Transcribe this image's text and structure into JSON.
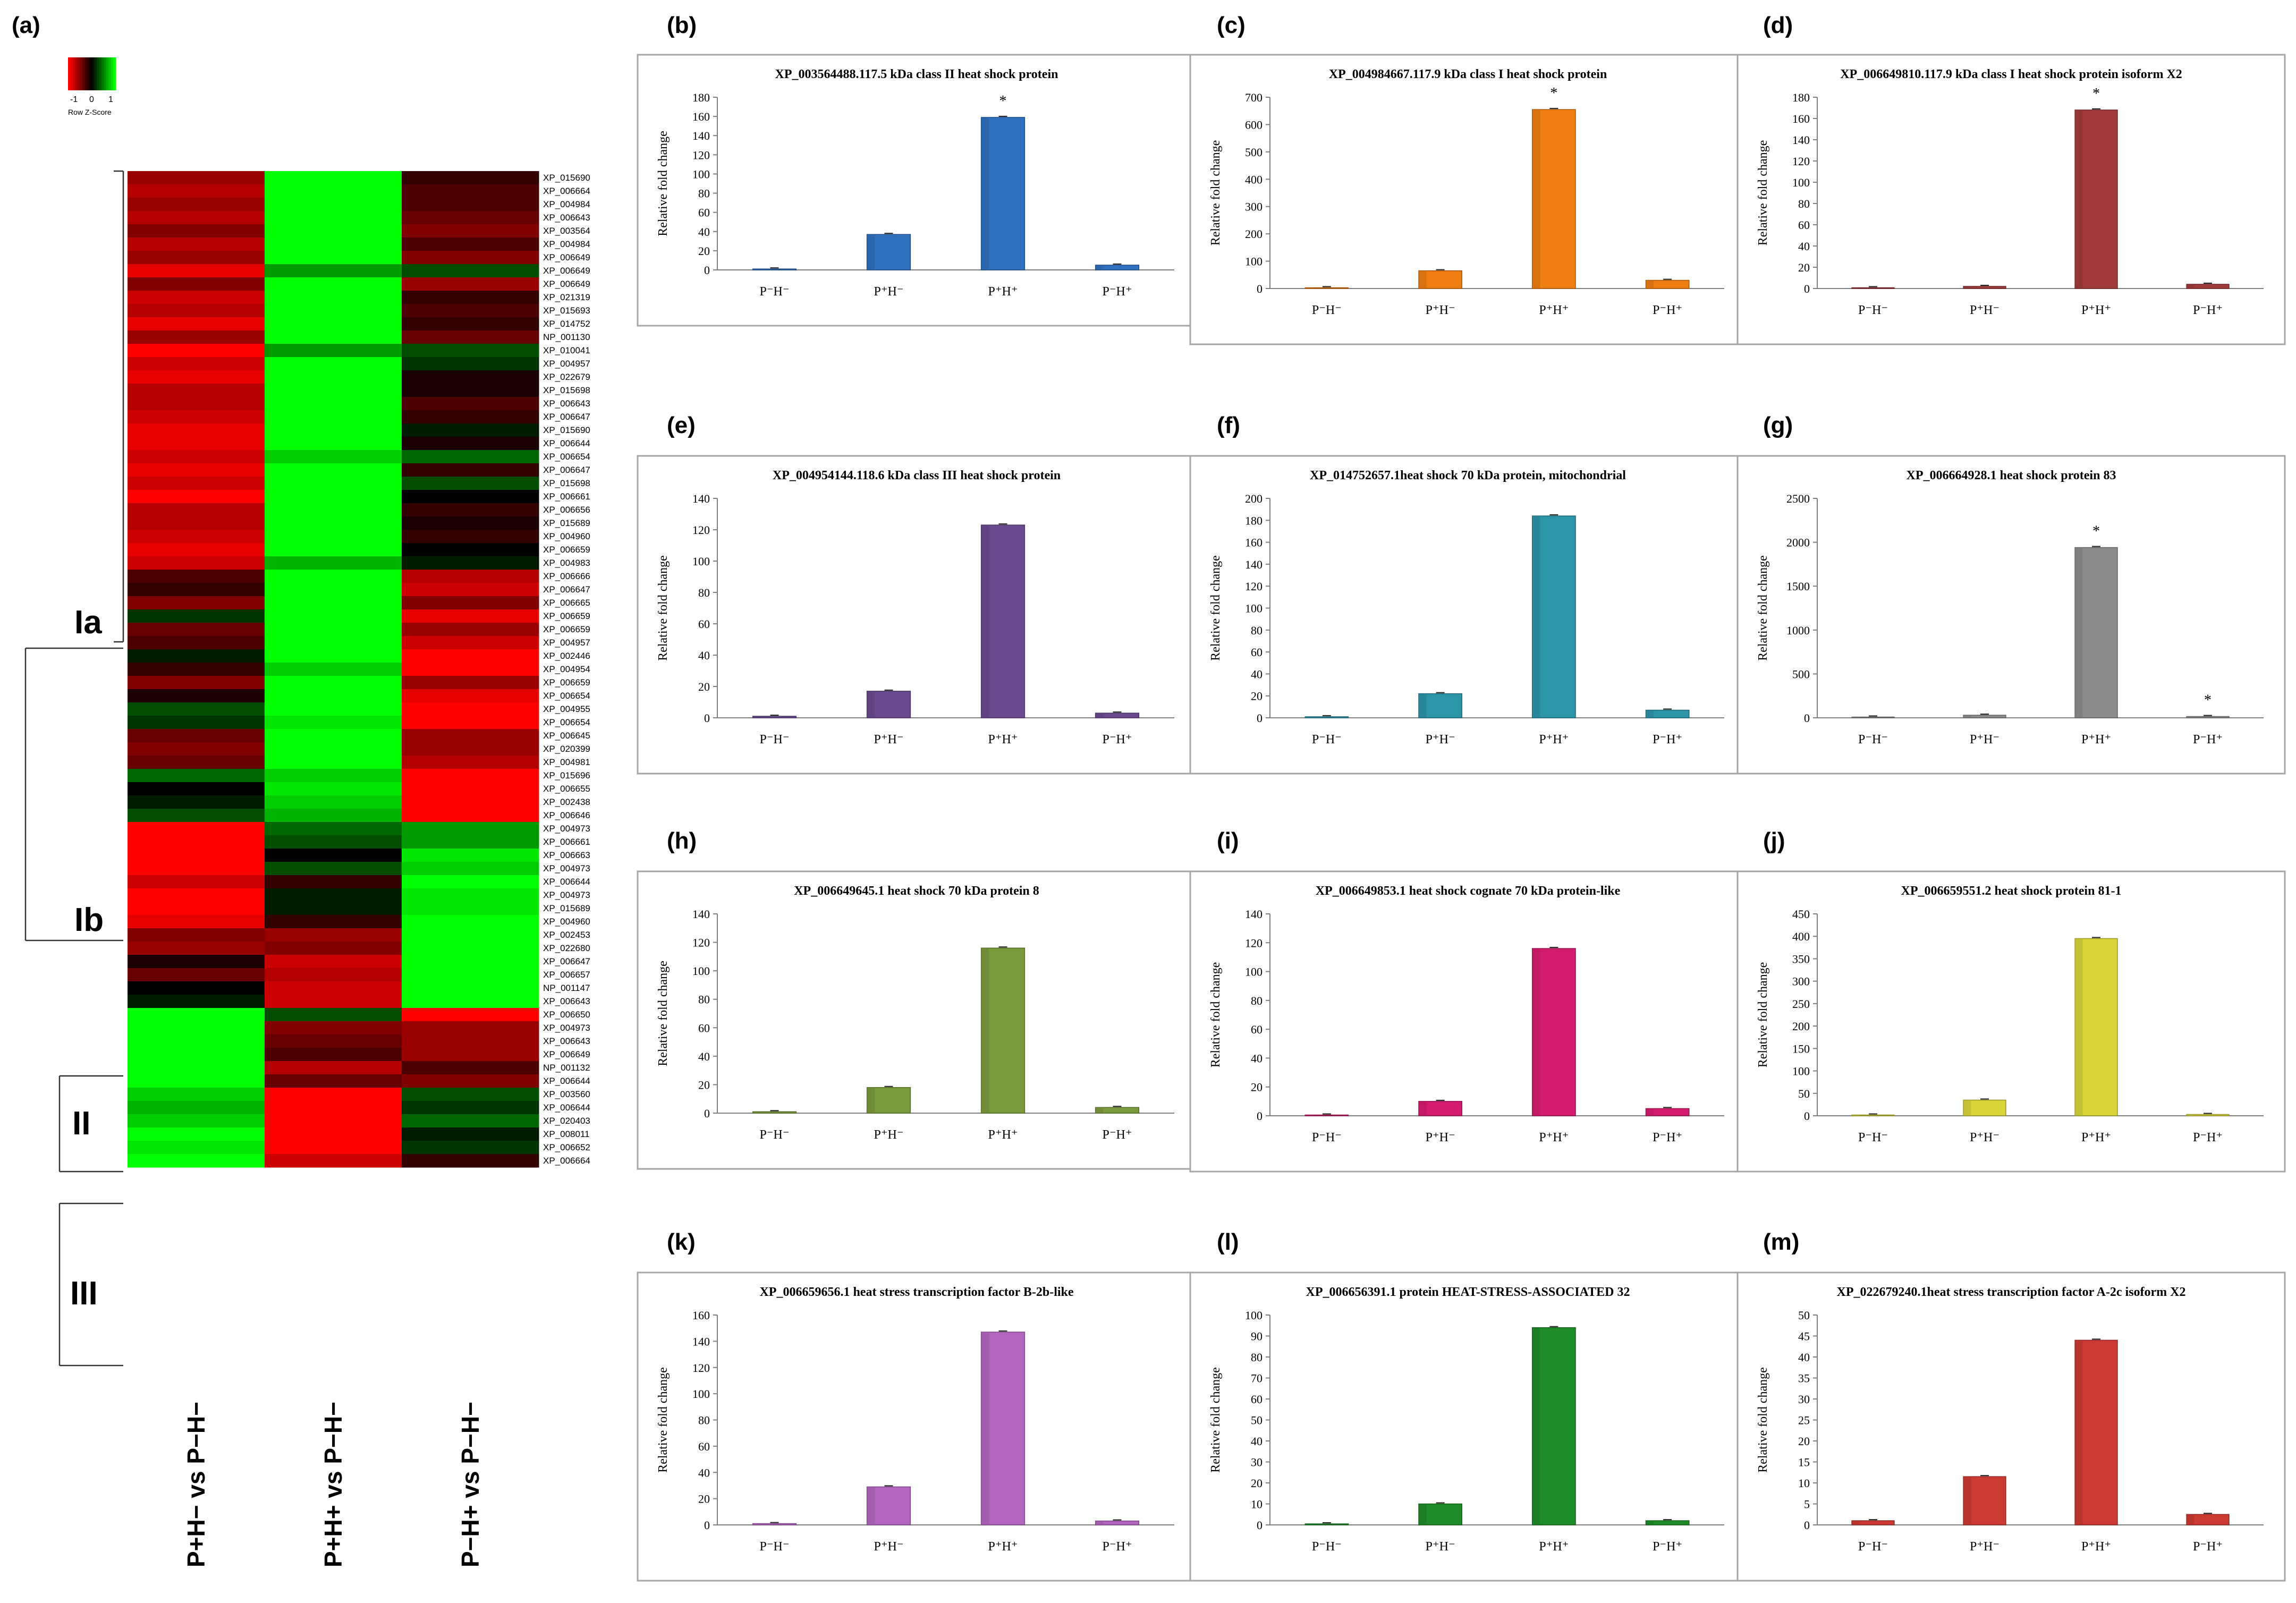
{
  "panel_letters": [
    "(a)",
    "(b)",
    "(c)",
    "(d)",
    "(e)",
    "(f)",
    "(g)",
    "(h)",
    "(i)",
    "(j)",
    "(k)",
    "(l)",
    "(m)"
  ],
  "heatmap": {
    "scale": {
      "ticks": [
        "-1",
        "0",
        "1"
      ],
      "label": "Row Z-Score"
    },
    "columns": [
      "P+H− vs P−H−",
      "P+H+ vs P−H−",
      "P−H+ vs P−H−"
    ],
    "groups": [
      "Ia",
      "Ib",
      "II",
      "III"
    ],
    "colors": {
      "low": "#ff0000",
      "mid": "#000000",
      "high": "#00ff00"
    },
    "rows": [
      "XP_015690",
      "XP_006664",
      "XP_004984",
      "XP_006643",
      "XP_003564",
      "XP_004984",
      "XP_006649",
      "XP_006649",
      "XP_006649",
      "XP_021319",
      "XP_015693",
      "XP_014752",
      "NP_001130",
      "XP_010041",
      "XP_004957",
      "XP_022679",
      "XP_015698",
      "XP_006643",
      "XP_006647",
      "XP_015690",
      "XP_006644",
      "XP_006654",
      "XP_006647",
      "XP_015698",
      "XP_006661",
      "XP_006656",
      "XP_015689",
      "XP_004960",
      "XP_006659",
      "XP_004983",
      "XP_006666",
      "XP_006647",
      "XP_006665",
      "XP_006659",
      "XP_006659",
      "XP_004957",
      "XP_002446",
      "XP_004954",
      "XP_006659",
      "XP_006654",
      "XP_004955",
      "XP_006654",
      "XP_006645",
      "XP_020399",
      "XP_004981",
      "XP_015696",
      "XP_006655",
      "XP_002438",
      "XP_006646",
      "XP_004973",
      "XP_006661",
      "XP_006663",
      "XP_004973",
      "XP_006644",
      "XP_004973",
      "XP_015689",
      "XP_004960",
      "XP_002453",
      "XP_022680",
      "XP_006647",
      "XP_006657",
      "NP_001147",
      "XP_006643",
      "XP_006650",
      "XP_004973",
      "XP_006643",
      "XP_006649",
      "NP_001132",
      "XP_006644",
      "XP_003560",
      "XP_006644",
      "XP_020403",
      "XP_008011",
      "XP_006652",
      "XP_006664"
    ],
    "values": [
      [
        -0.6,
        1,
        -0.2
      ],
      [
        -0.7,
        1,
        -0.3
      ],
      [
        -0.6,
        1,
        -0.3
      ],
      [
        -0.7,
        1,
        -0.4
      ],
      [
        -0.5,
        1,
        -0.5
      ],
      [
        -0.7,
        1,
        -0.3
      ],
      [
        -0.6,
        1,
        -0.5
      ],
      [
        -0.9,
        0.6,
        0.3
      ],
      [
        -0.5,
        1,
        -0.6
      ],
      [
        -0.8,
        1,
        -0.2
      ],
      [
        -0.7,
        1,
        -0.3
      ],
      [
        -0.9,
        1,
        -0.2
      ],
      [
        -0.6,
        1,
        -0.4
      ],
      [
        -1,
        0.6,
        0.3
      ],
      [
        -0.8,
        1,
        0.2
      ],
      [
        -0.9,
        1,
        -0.1
      ],
      [
        -0.7,
        1,
        -0.1
      ],
      [
        -0.7,
        1,
        -0.3
      ],
      [
        -0.8,
        1,
        -0.2
      ],
      [
        -0.9,
        1,
        0.1
      ],
      [
        -0.9,
        1,
        -0.1
      ],
      [
        -0.8,
        0.8,
        0.4
      ],
      [
        -0.9,
        1,
        -0.2
      ],
      [
        -0.8,
        1,
        0.3
      ],
      [
        -1,
        1,
        0
      ],
      [
        -0.7,
        1,
        -0.2
      ],
      [
        -0.7,
        1,
        -0.1
      ],
      [
        -0.8,
        1,
        -0.2
      ],
      [
        -0.9,
        1,
        0
      ],
      [
        -0.8,
        0.7,
        0.1
      ],
      [
        -0.3,
        1,
        -0.7
      ],
      [
        -0.2,
        1,
        -0.8
      ],
      [
        -0.5,
        1,
        -0.5
      ],
      [
        0.2,
        1,
        -0.9
      ],
      [
        -0.4,
        1,
        -0.6
      ],
      [
        -0.3,
        1,
        -0.8
      ],
      [
        0.1,
        1,
        -1
      ],
      [
        -0.2,
        0.8,
        -1
      ],
      [
        -0.5,
        1,
        -0.6
      ],
      [
        -0.1,
        1,
        -0.9
      ],
      [
        0.3,
        1,
        -1
      ],
      [
        0.2,
        0.9,
        -1
      ],
      [
        -0.4,
        1,
        -0.6
      ],
      [
        -0.5,
        1,
        -0.6
      ],
      [
        -0.4,
        1,
        -0.7
      ],
      [
        0.4,
        0.8,
        -1
      ],
      [
        0,
        0.9,
        -1
      ],
      [
        0.1,
        0.8,
        -1
      ],
      [
        0.3,
        0.7,
        -1
      ],
      [
        -1,
        0.4,
        0.6
      ],
      [
        -1,
        0.3,
        0.6
      ],
      [
        -1,
        0,
        0.9
      ],
      [
        -1,
        0.3,
        0.8
      ],
      [
        -0.8,
        -0.2,
        1
      ],
      [
        -1,
        0.1,
        0.9
      ],
      [
        -1,
        0.1,
        0.9
      ],
      [
        -0.9,
        -0.2,
        1
      ],
      [
        -0.5,
        -0.6,
        1
      ],
      [
        -0.6,
        -0.5,
        1
      ],
      [
        -0.1,
        -0.8,
        1
      ],
      [
        -0.4,
        -0.7,
        1
      ],
      [
        0,
        -0.8,
        1
      ],
      [
        0.1,
        -0.8,
        1
      ],
      [
        1,
        0.3,
        -1
      ],
      [
        1,
        -0.5,
        -0.6
      ],
      [
        1,
        -0.4,
        -0.6
      ],
      [
        1,
        -0.3,
        -0.6
      ],
      [
        1,
        -0.7,
        -0.3
      ],
      [
        1,
        -0.4,
        -0.5
      ],
      [
        0.8,
        -1,
        0.3
      ],
      [
        0.7,
        -1,
        0.2
      ],
      [
        0.8,
        -1,
        0.4
      ],
      [
        1,
        -1,
        0.1
      ],
      [
        0.9,
        -1,
        0.2
      ],
      [
        1,
        -0.8,
        -0.2
      ]
    ]
  },
  "chart_data": [
    {
      "panel": "(b)",
      "type": "bar",
      "title": "XP_003564488.117.5 kDa class II heat shock protein",
      "ylabel": "Relative fold change",
      "categories": [
        "P⁻H⁻",
        "P⁺H⁻",
        "P⁺H⁺",
        "P⁻H⁺"
      ],
      "values": [
        1,
        37,
        159,
        5
      ],
      "ylim": [
        0,
        180
      ],
      "ticks": [
        0,
        20,
        40,
        60,
        80,
        100,
        120,
        140,
        160,
        180
      ],
      "color": "#2f70bf",
      "sig": [
        "",
        "",
        "*",
        ""
      ]
    },
    {
      "panel": "(c)",
      "type": "bar",
      "title": "XP_004984667.117.9 kDa class I heat shock protein",
      "ylabel": "Relative fold change",
      "categories": [
        "P⁻H⁻",
        "P⁺H⁻",
        "P⁺H⁺",
        "P⁻H⁺"
      ],
      "values": [
        1,
        65,
        655,
        30
      ],
      "ylim": [
        0,
        700
      ],
      "ticks": [
        0,
        100,
        200,
        300,
        400,
        500,
        600,
        700
      ],
      "color": "#ee7d12",
      "sig": [
        "",
        "",
        "*",
        ""
      ]
    },
    {
      "panel": "(d)",
      "type": "bar",
      "title": "XP_006649810.117.9 kDa class I heat shock protein isoform X2",
      "ylabel": "Relative fold change",
      "categories": [
        "P⁻H⁻",
        "P⁺H⁻",
        "P⁺H⁺",
        "P⁻H⁺"
      ],
      "values": [
        0.5,
        2,
        168,
        4
      ],
      "ylim": [
        0,
        180
      ],
      "ticks": [
        0,
        20,
        40,
        60,
        80,
        100,
        120,
        140,
        160,
        180
      ],
      "color": "#a13b3b",
      "sig": [
        "",
        "",
        "*",
        ""
      ]
    },
    {
      "panel": "(e)",
      "type": "bar",
      "title": "XP_004954144.118.6 kDa class III heat shock protein",
      "ylabel": "Relative fold change",
      "categories": [
        "P⁻H⁻",
        "P⁺H⁻",
        "P⁺H⁺",
        "P⁻H⁺"
      ],
      "values": [
        1,
        17,
        123,
        3
      ],
      "ylim": [
        0,
        140
      ],
      "ticks": [
        0,
        20,
        40,
        60,
        80,
        100,
        120,
        140
      ],
      "color": "#6a4a8e",
      "sig": [
        "",
        "",
        "",
        ""
      ]
    },
    {
      "panel": "(f)",
      "type": "bar",
      "title": "XP_014752657.1heat shock 70 kDa protein, mitochondrial",
      "ylabel": "Relative fold change",
      "categories": [
        "P⁻H⁻",
        "P⁺H⁻",
        "P⁺H⁺",
        "P⁻H⁺"
      ],
      "values": [
        1,
        22,
        184,
        7
      ],
      "ylim": [
        0,
        200
      ],
      "ticks": [
        0,
        20,
        40,
        60,
        80,
        100,
        120,
        140,
        160,
        180,
        200
      ],
      "color": "#2c95a8",
      "sig": [
        "",
        "",
        "",
        ""
      ]
    },
    {
      "panel": "(g)",
      "type": "bar",
      "title": "XP_006664928.1 heat shock protein 83",
      "ylabel": "Relative fold change",
      "categories": [
        "P⁻H⁻",
        "P⁺H⁻",
        "P⁺H⁺",
        "P⁻H⁺"
      ],
      "values": [
        1,
        30,
        1940,
        15
      ],
      "ylim": [
        0,
        2500
      ],
      "ticks": [
        0,
        500,
        1000,
        1500,
        2000,
        2500
      ],
      "color": "#8c8c8c",
      "sig": [
        "",
        "",
        "*",
        "*"
      ]
    },
    {
      "panel": "(h)",
      "type": "bar",
      "title": "XP_006649645.1 heat shock 70 kDa protein 8",
      "ylabel": "Relative fold change",
      "categories": [
        "P⁻H⁻",
        "P⁺H⁻",
        "P⁺H⁺",
        "P⁻H⁺"
      ],
      "values": [
        1,
        18,
        116,
        4
      ],
      "ylim": [
        0,
        140
      ],
      "ticks": [
        0,
        20,
        40,
        60,
        80,
        100,
        120,
        140
      ],
      "color": "#7b9a3c",
      "sig": [
        "",
        "",
        "",
        ""
      ]
    },
    {
      "panel": "(i)",
      "type": "bar",
      "title": "XP_006649853.1 heat shock cognate 70 kDa protein-like",
      "ylabel": "Relative fold change",
      "categories": [
        "P⁻H⁻",
        "P⁺H⁻",
        "P⁺H⁺",
        "P⁻H⁺"
      ],
      "values": [
        0.5,
        10,
        116,
        5
      ],
      "ylim": [
        0,
        140
      ],
      "ticks": [
        0,
        20,
        40,
        60,
        80,
        100,
        120,
        140
      ],
      "color": "#d41c6e",
      "sig": [
        "",
        "",
        "",
        ""
      ]
    },
    {
      "panel": "(j)",
      "type": "bar",
      "title": "XP_006659551.2 heat shock protein 81-1",
      "ylabel": "Relative fold change",
      "categories": [
        "P⁻H⁻",
        "P⁺H⁻",
        "P⁺H⁺",
        "P⁻H⁺"
      ],
      "values": [
        1,
        35,
        395,
        3
      ],
      "ylim": [
        0,
        450
      ],
      "ticks": [
        0,
        50,
        100,
        150,
        200,
        250,
        300,
        350,
        400,
        450
      ],
      "color": "#d8d43a",
      "sig": [
        "",
        "",
        "",
        ""
      ]
    },
    {
      "panel": "(k)",
      "type": "bar",
      "title": "XP_006659656.1 heat stress transcription factor B-2b-like",
      "ylabel": "Relative fold change",
      "categories": [
        "P⁻H⁻",
        "P⁺H⁻",
        "P⁺H⁺",
        "P⁻H⁺"
      ],
      "values": [
        1,
        29,
        147,
        3
      ],
      "ylim": [
        0,
        160
      ],
      "ticks": [
        0,
        20,
        40,
        60,
        80,
        100,
        120,
        140,
        160
      ],
      "color": "#b266bf",
      "sig": [
        "",
        "",
        "",
        ""
      ]
    },
    {
      "panel": "(l)",
      "type": "bar",
      "title": "XP_006656391.1 protein HEAT-STRESS-ASSOCIATED 32",
      "ylabel": "Relative fold change",
      "categories": [
        "P⁻H⁻",
        "P⁺H⁻",
        "P⁺H⁺",
        "P⁻H⁺"
      ],
      "values": [
        0.5,
        10,
        94,
        2
      ],
      "ylim": [
        0,
        100
      ],
      "ticks": [
        0,
        10,
        20,
        30,
        40,
        50,
        60,
        70,
        80,
        90,
        100
      ],
      "color": "#1f8c2a",
      "sig": [
        "",
        "",
        "",
        ""
      ]
    },
    {
      "panel": "(m)",
      "type": "bar",
      "title": "XP_022679240.1heat stress transcription factor A-2c isoform X2",
      "ylabel": "Relative fold change",
      "categories": [
        "P⁻H⁻",
        "P⁺H⁻",
        "P⁺H⁺",
        "P⁻H⁺"
      ],
      "values": [
        1,
        11.5,
        44,
        2.5
      ],
      "ylim": [
        0,
        50
      ],
      "ticks": [
        0,
        5,
        10,
        15,
        20,
        25,
        30,
        35,
        40,
        45,
        50
      ],
      "color": "#cc3a34",
      "sig": [
        "",
        "",
        "",
        ""
      ]
    }
  ]
}
